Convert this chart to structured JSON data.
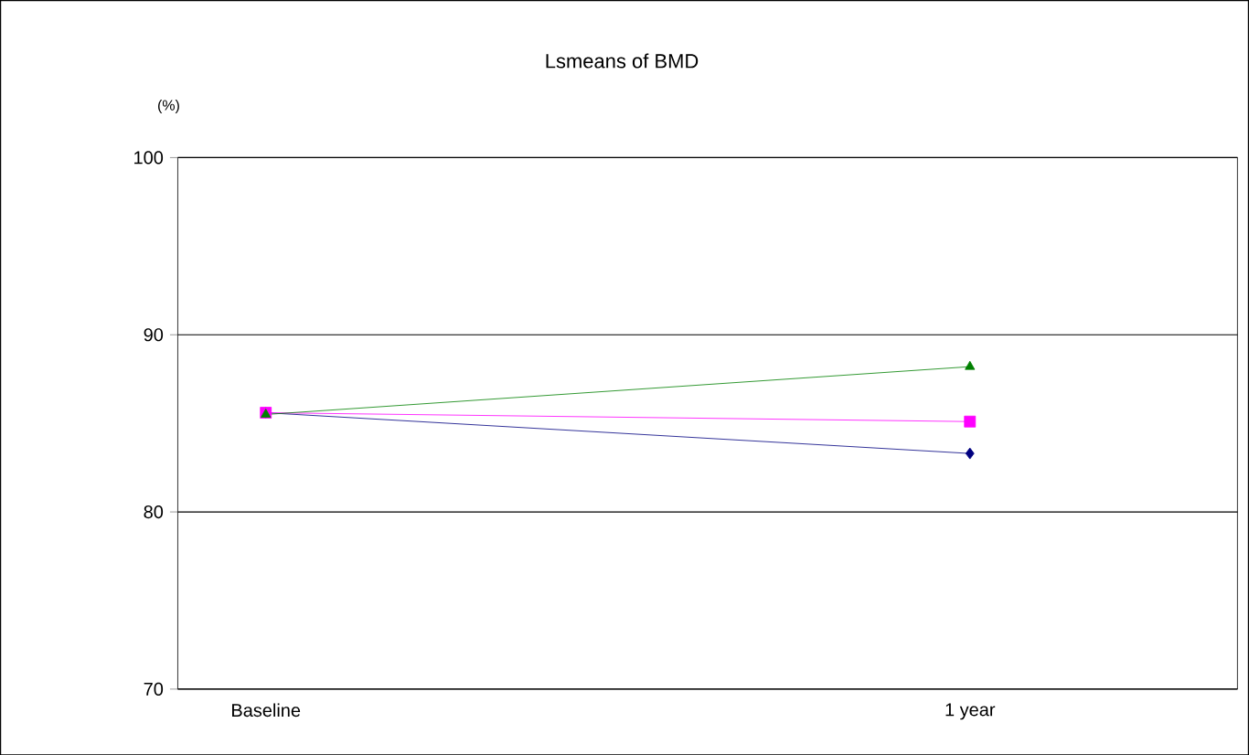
{
  "chart_data": {
    "type": "line",
    "title": "Lsmeans of BMD",
    "ylabel": "(%)",
    "categories": [
      "Baseline",
      "1 year"
    ],
    "series": [
      {
        "color": "#000080",
        "marker": "diamond",
        "values": [
          85.6,
          83.3
        ]
      },
      {
        "color": "#ff00ff",
        "marker": "square",
        "values": [
          85.6,
          85.1
        ]
      },
      {
        "color": "#008000",
        "marker": "triangle",
        "values": [
          85.5,
          88.2
        ]
      }
    ],
    "ylim": [
      70,
      100
    ],
    "yticks": [
      70,
      80,
      90,
      100
    ],
    "grid": "y",
    "line_style": "solid"
  }
}
